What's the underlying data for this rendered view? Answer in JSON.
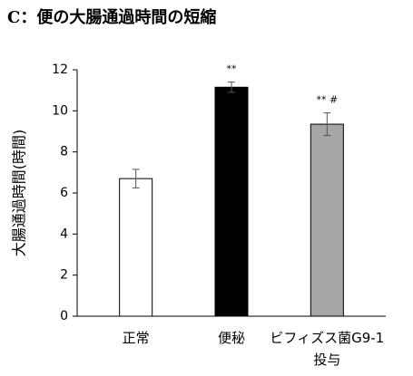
{
  "chart_data": {
    "type": "bar",
    "title": "C：便の大腸通過時間の短縮",
    "y_label": "大腸通過時間(時間)",
    "categories": [
      "正常",
      "便秘",
      "ビフィズス菌G9-1\n投与"
    ],
    "values": [
      6.7,
      11.15,
      9.35
    ],
    "errors": [
      0.45,
      0.25,
      0.55
    ],
    "colors": [
      "#ffffff",
      "#000000",
      "#a6a6a6"
    ],
    "significance": [
      null,
      "**",
      "** #"
    ],
    "ylim": [
      0,
      12
    ],
    "yticks": [
      0,
      2,
      4,
      6,
      8,
      10,
      12
    ]
  }
}
